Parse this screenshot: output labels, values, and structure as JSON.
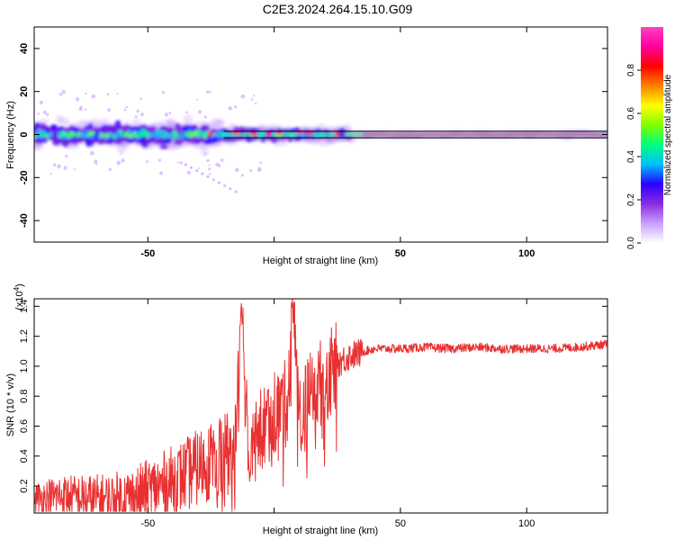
{
  "title": "C2E3.2024.264.15.10.G09",
  "colorbar": {
    "label": "Normalized spectral amplitude",
    "ticks": [
      "0.0",
      "0.2",
      "0.4",
      "0.6",
      "0.8"
    ],
    "tick_values": [
      0.0,
      0.2,
      0.4,
      0.6,
      0.8
    ],
    "range": [
      0.0,
      1.0
    ],
    "colormap": [
      "#ffffff",
      "#c9a0ff",
      "#8a2be2",
      "#2a00ff",
      "#00bfff",
      "#00ff80",
      "#7fff00",
      "#ffff00",
      "#ff8000",
      "#ff0000",
      "#ff00a0",
      "#ff40c0"
    ]
  },
  "chart_data": [
    {
      "type": "heatmap",
      "title": "",
      "xlabel": "Height of straight line (km)",
      "ylabel": "Frequency (Hz)",
      "xlim": [
        -95,
        132
      ],
      "ylim": [
        -50,
        50
      ],
      "xticks": [
        -50,
        0,
        50,
        100
      ],
      "yticks": [
        -40,
        -20,
        0,
        20,
        40
      ],
      "xtick_labels": [
        "-50",
        "",
        "50",
        "100"
      ],
      "ytick_labels": [
        "-40",
        "-20",
        "0",
        "20",
        "40"
      ],
      "reference_lines_hz": [
        -1.5,
        1.5
      ],
      "reference_line_color": "#000000",
      "description_of_energy": "broadband scattered signal near 0 Hz from -95 to ~30 km, narrowing to a steady line at 0 Hz for heights above ~30 km"
    },
    {
      "type": "line",
      "title": "",
      "xlabel": "Height of straight line (km)",
      "ylabel": "SNR (10 * v/v)",
      "y_scale_note": "(x10",
      "y_scale_exponent": "4",
      "xlim": [
        -95,
        132
      ],
      "ylim": [
        0.02,
        1.45
      ],
      "xticks": [
        -50,
        0,
        50,
        100
      ],
      "yticks": [
        0.2,
        0.4,
        0.6,
        0.8,
        1.0,
        1.2,
        1.4
      ],
      "xtick_labels": [
        "-50",
        "",
        "50",
        "100"
      ],
      "ytick_labels": [
        "0.2",
        "0.4",
        "0.6",
        "0.8",
        "1.0",
        "1.2",
        "1.4"
      ],
      "series": [
        {
          "color": "#e83030",
          "x": [
            -95,
            -85,
            -75,
            -65,
            -55,
            -45,
            -35,
            -25,
            -20,
            -15,
            -13,
            -10,
            -5,
            0,
            5,
            8,
            10,
            15,
            20,
            25,
            30,
            35,
            40,
            50,
            60,
            70,
            80,
            90,
            100,
            110,
            120,
            132
          ],
          "y": [
            0.12,
            0.15,
            0.13,
            0.12,
            0.15,
            0.22,
            0.3,
            0.4,
            0.45,
            0.5,
            1.45,
            0.5,
            0.6,
            0.72,
            0.78,
            1.45,
            0.68,
            0.85,
            0.95,
            1.03,
            1.08,
            1.1,
            1.12,
            1.12,
            1.13,
            1.12,
            1.13,
            1.12,
            1.12,
            1.12,
            1.13,
            1.15
          ]
        }
      ]
    }
  ]
}
